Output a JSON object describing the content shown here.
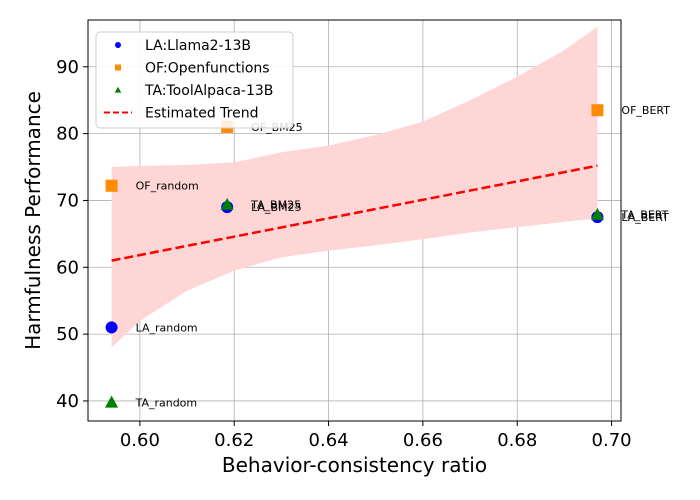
{
  "chart_data": {
    "type": "scatter",
    "title": "",
    "xlabel": "Behavior-consistency ratio",
    "ylabel": "Harmfulness Performance",
    "xlim": [
      0.589,
      0.702
    ],
    "ylim": [
      37,
      97
    ],
    "xticks": [
      0.6,
      0.62,
      0.64,
      0.66,
      0.68,
      0.7
    ],
    "xtick_labels": [
      "0.60",
      "0.62",
      "0.64",
      "0.66",
      "0.68",
      "0.70"
    ],
    "yticks": [
      40,
      50,
      60,
      70,
      80,
      90
    ],
    "ytick_labels": [
      "40",
      "50",
      "60",
      "70",
      "80",
      "90"
    ],
    "grid": true,
    "legend_position": "top-left",
    "series": [
      {
        "name": "LA:Llama2-13B",
        "marker": "circle",
        "color": "#0000ff",
        "points": [
          {
            "x": 0.594,
            "y": 51.0,
            "label": "LA_random"
          },
          {
            "x": 0.6185,
            "y": 69.0,
            "label": "LA_BM25"
          },
          {
            "x": 0.697,
            "y": 67.5,
            "label": "LA_BERT"
          }
        ]
      },
      {
        "name": "OF:Openfunctions",
        "marker": "square",
        "color": "#ff8c00",
        "points": [
          {
            "x": 0.594,
            "y": 72.2,
            "label": "OF_random"
          },
          {
            "x": 0.6185,
            "y": 81.0,
            "label": "OF_BM25"
          },
          {
            "x": 0.697,
            "y": 83.5,
            "label": "OF_BERT"
          }
        ]
      },
      {
        "name": "TA:ToolAlpaca-13B",
        "marker": "triangle",
        "color": "#008000",
        "points": [
          {
            "x": 0.594,
            "y": 39.8,
            "label": "TA_random"
          },
          {
            "x": 0.6185,
            "y": 69.4,
            "label": "TA_BM25"
          },
          {
            "x": 0.697,
            "y": 67.9,
            "label": "TA_BERT"
          }
        ]
      }
    ],
    "trend": {
      "name": "Estimated Trend",
      "color": "#ff0000",
      "style": "dashed",
      "x": [
        0.594,
        0.697
      ],
      "y": [
        61.0,
        75.2
      ],
      "band_color": "#ffd6d6",
      "band_x": [
        0.594,
        0.6,
        0.61,
        0.62,
        0.63,
        0.64,
        0.65,
        0.66,
        0.67,
        0.68,
        0.69,
        0.697
      ],
      "band_lower": [
        48.0,
        52.0,
        56.5,
        59.5,
        61.5,
        62.5,
        63.3,
        64.2,
        65.2,
        66.0,
        66.8,
        67.3
      ],
      "band_upper": [
        75.0,
        75.2,
        75.3,
        75.7,
        77.2,
        78.2,
        79.8,
        81.8,
        85.0,
        88.5,
        92.5,
        96.0
      ]
    }
  }
}
